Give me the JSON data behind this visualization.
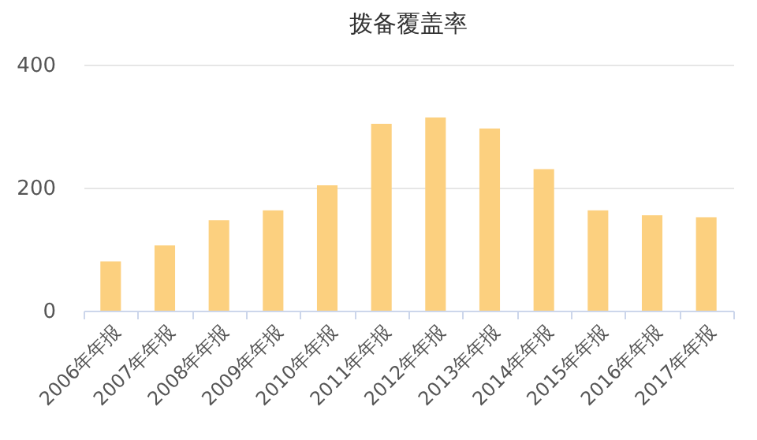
{
  "chart_data": {
    "type": "bar",
    "title": "拨备覆盖率",
    "categories": [
      "2006年年报",
      "2007年年报",
      "2008年年报",
      "2009年年报",
      "2010年年报",
      "2011年年报",
      "2012年年报",
      "2013年年报",
      "2014年年报",
      "2015年年报",
      "2016年年报",
      "2017年年报"
    ],
    "values": [
      80,
      106,
      147,
      163,
      204,
      304,
      314,
      296,
      230,
      163,
      155,
      152
    ],
    "color": "#fcd07f",
    "ylim": [
      0,
      400
    ],
    "yticks": [
      0,
      200,
      400
    ],
    "grid": "y"
  }
}
